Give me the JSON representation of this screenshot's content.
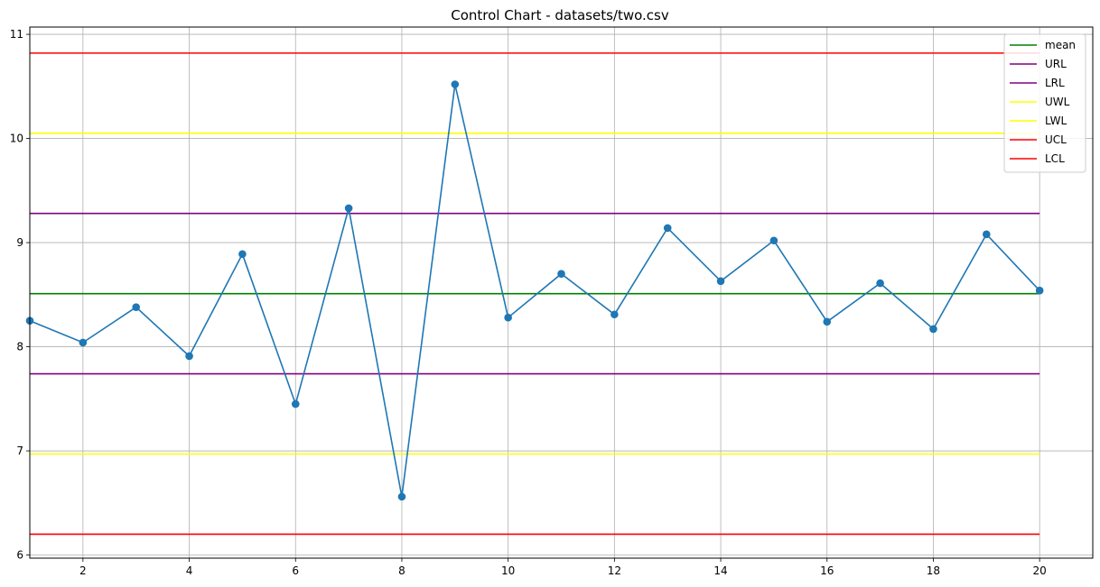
{
  "chart_data": {
    "type": "line",
    "title": "Control Chart - datasets/two.csv",
    "xlabel": "",
    "ylabel": "",
    "xlim": [
      1,
      21
    ],
    "ylim": [
      5.97,
      11.07
    ],
    "grid": true,
    "legend_placement": "top-right",
    "x_ticks": [
      2,
      4,
      6,
      8,
      10,
      12,
      14,
      16,
      18,
      20
    ],
    "y_ticks": [
      6,
      7,
      8,
      9,
      10,
      11
    ],
    "x": [
      1,
      2,
      3,
      4,
      5,
      6,
      7,
      8,
      9,
      10,
      11,
      12,
      13,
      14,
      15,
      16,
      17,
      18,
      19,
      20
    ],
    "series": [
      {
        "color": "#1f77b4",
        "values": [
          8.25,
          8.04,
          8.38,
          7.91,
          8.89,
          7.45,
          9.33,
          6.56,
          10.52,
          8.28,
          8.7,
          8.31,
          9.14,
          8.63,
          9.02,
          8.24,
          8.61,
          8.17,
          9.08,
          8.54
        ]
      }
    ],
    "reference_lines": [
      {
        "name": "mean",
        "value": 8.51,
        "color": "#008000"
      },
      {
        "name": "URL",
        "value": 9.28,
        "color": "#800080"
      },
      {
        "name": "LRL",
        "value": 7.74,
        "color": "#800080"
      },
      {
        "name": "UWL",
        "value": 10.05,
        "color": "#ffff00"
      },
      {
        "name": "LWL",
        "value": 6.97,
        "color": "#ffff00"
      },
      {
        "name": "UCL",
        "value": 10.82,
        "color": "#ff0000"
      },
      {
        "name": "LCL",
        "value": 6.2,
        "color": "#ff0000"
      }
    ]
  }
}
